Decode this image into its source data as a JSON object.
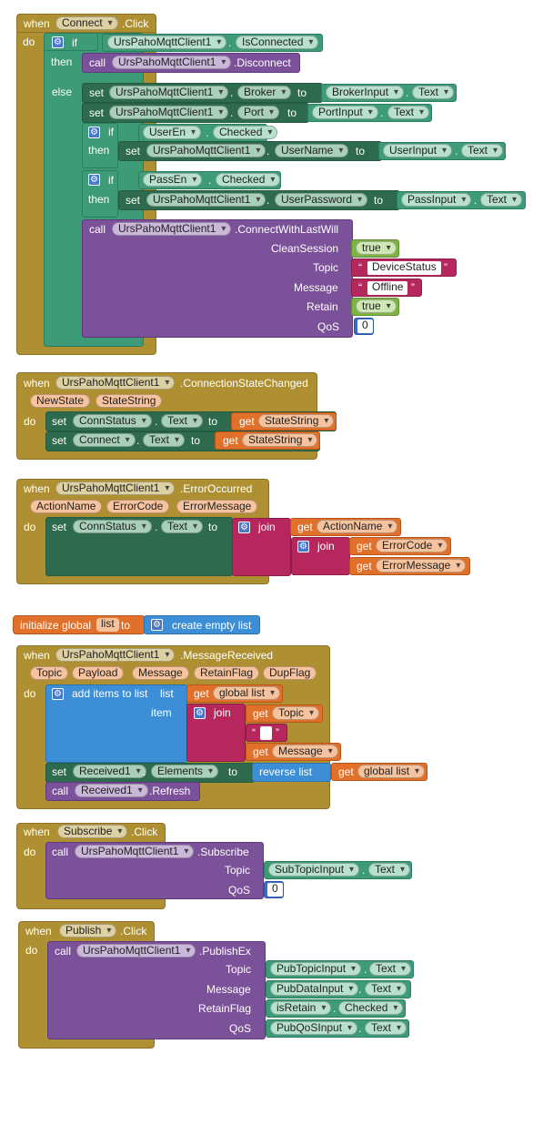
{
  "kw": {
    "when": "when",
    "do": "do",
    "if": "if",
    "then": "then",
    "else": "else",
    "set": "set",
    "call": "call",
    "to": "to",
    "get": "get",
    "join": "join",
    "item": "item",
    "list": "list",
    "dot": "."
  },
  "connect_click": {
    "component": "Connect",
    "event": ".Click",
    "if_comp": "UrsPahoMqttClient1",
    "if_prop": "IsConnected",
    "disc_comp": "UrsPahoMqttClient1",
    "disc_method": ".Disconnect",
    "broker_comp": "UrsPahoMqttClient1",
    "broker_prop": "Broker",
    "broker_src": "BrokerInput",
    "broker_src_prop": "Text",
    "port_comp": "UrsPahoMqttClient1",
    "port_prop": "Port",
    "port_src": "PortInput",
    "port_src_prop": "Text",
    "user_cond": "UserEn",
    "user_cond_prop": "Checked",
    "user_comp": "UrsPahoMqttClient1",
    "user_prop": "UserName",
    "user_src": "UserInput",
    "user_src_prop": "Text",
    "pass_cond": "PassEn",
    "pass_cond_prop": "Checked",
    "pass_comp": "UrsPahoMqttClient1",
    "pass_prop": "UserPassword",
    "pass_src": "PassInput",
    "pass_src_prop": "Text",
    "will_comp": "UrsPahoMqttClient1",
    "will_method": ".ConnectWithLastWill",
    "p_clean": "CleanSession",
    "v_clean": "true",
    "p_topic": "Topic",
    "v_topic": "DeviceStatus",
    "p_message": "Message",
    "v_message": "Offline",
    "p_retain": "Retain",
    "v_retain": "true",
    "p_qos": "QoS",
    "v_qos": "0"
  },
  "conn_state": {
    "component": "UrsPahoMqttClient1",
    "event": ".ConnectionStateChanged",
    "param1": "NewState",
    "param2": "StateString",
    "s1_comp": "ConnStatus",
    "s1_prop": "Text",
    "s1_get": "StateString",
    "s2_comp": "Connect",
    "s2_prop": "Text",
    "s2_get": "StateString"
  },
  "error": {
    "component": "UrsPahoMqttClient1",
    "event": ".ErrorOccurred",
    "param1": "ActionName",
    "param2": "ErrorCode",
    "param3": "ErrorMessage",
    "s_comp": "ConnStatus",
    "s_prop": "Text",
    "g1": "ActionName",
    "g2": "ErrorCode",
    "g3": "ErrorMessage"
  },
  "global_init": {
    "label": "initialize global",
    "name": "list",
    "to": "to",
    "value": "create empty list"
  },
  "msg_received": {
    "component": "UrsPahoMqttClient1",
    "event": ".MessageReceived",
    "params": [
      "Topic",
      "Payload",
      "Message",
      "RetainFlag",
      "DupFlag"
    ],
    "add_label": "add items to list",
    "list_label": "list",
    "global_get": "global list",
    "item_label": "item",
    "g_topic": "Topic",
    "g_message": "Message",
    "set_comp": "Received1",
    "set_prop": "Elements",
    "reverse": "reverse list",
    "reverse_get": "global list",
    "refresh_comp": "Received1",
    "refresh_method": ".Refresh"
  },
  "subscribe": {
    "component": "Subscribe",
    "event": ".Click",
    "comp": "UrsPahoMqttClient1",
    "method": ".Subscribe",
    "p_topic": "Topic",
    "v_topic": "SubTopicInput",
    "v_topic_prop": "Text",
    "p_qos": "QoS",
    "v_qos": "0"
  },
  "publish": {
    "component": "Publish",
    "event": ".Click",
    "comp": "UrsPahoMqttClient1",
    "method": ".PublishEx",
    "p_topic": "Topic",
    "v_topic": "PubTopicInput",
    "v_topic_prop": "Text",
    "p_message": "Message",
    "v_message": "PubDataInput",
    "v_message_prop": "Text",
    "p_retain": "RetainFlag",
    "v_retain": "isRetain",
    "v_retain_prop": "Checked",
    "p_qos": "QoS",
    "v_qos": "PubQoSInput",
    "v_qos_prop": "Text"
  },
  "colors": {
    "event": "#ae9033",
    "component_set": "#2e6b4e",
    "method_call": "#7b5199",
    "control": "#3d9b78",
    "text": "#b6275d",
    "logic": "#7cb342",
    "list": "#3c8fd6",
    "variable": "#e0702a"
  }
}
